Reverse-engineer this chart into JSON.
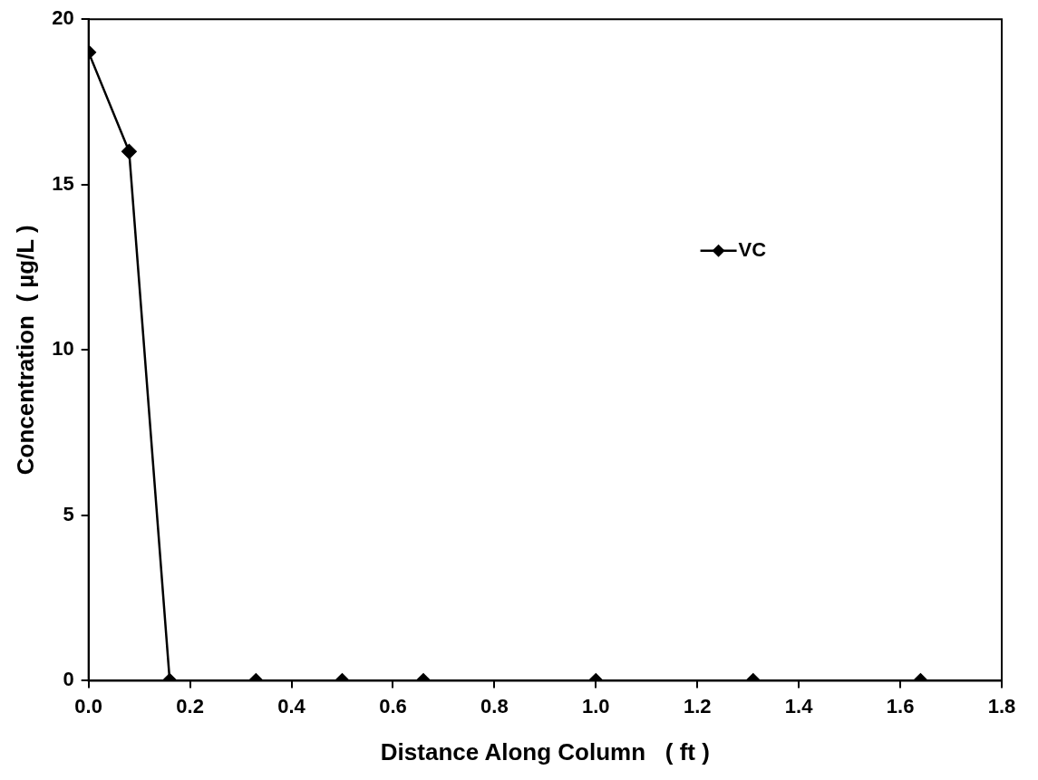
{
  "chart_data": {
    "type": "line",
    "xlabel": "Distance Along Column   ( ft )",
    "ylabel": "Concentration  ( µg/L )",
    "series": [
      {
        "name": "VC",
        "color": "#000000",
        "x": [
          0,
          0.08,
          0.16,
          0.33,
          0.5,
          0.66,
          1.0,
          1.31,
          1.64
        ],
        "values": [
          19,
          16,
          0,
          0,
          0,
          0,
          0,
          0,
          0
        ]
      }
    ],
    "xlim": [
      0,
      1.8
    ],
    "xticks": [
      {
        "value": 0,
        "label": "0.0"
      },
      {
        "value": 0.2,
        "label": "0.2"
      },
      {
        "value": 0.4,
        "label": "0.4"
      },
      {
        "value": 0.6,
        "label": "0.6"
      },
      {
        "value": 0.8,
        "label": "0.8"
      },
      {
        "value": 1,
        "label": "1.0"
      },
      {
        "value": 1.2,
        "label": "1.2"
      },
      {
        "value": 1.4,
        "label": "1.4"
      },
      {
        "value": 1.6,
        "label": "1.6"
      },
      {
        "value": 1.8,
        "label": "1.8"
      }
    ],
    "ylim": [
      0,
      20
    ],
    "yticks": [
      0,
      5,
      10,
      15,
      20
    ],
    "grid": false,
    "legend": "right",
    "marker": "diamond",
    "line_style": "solid"
  }
}
